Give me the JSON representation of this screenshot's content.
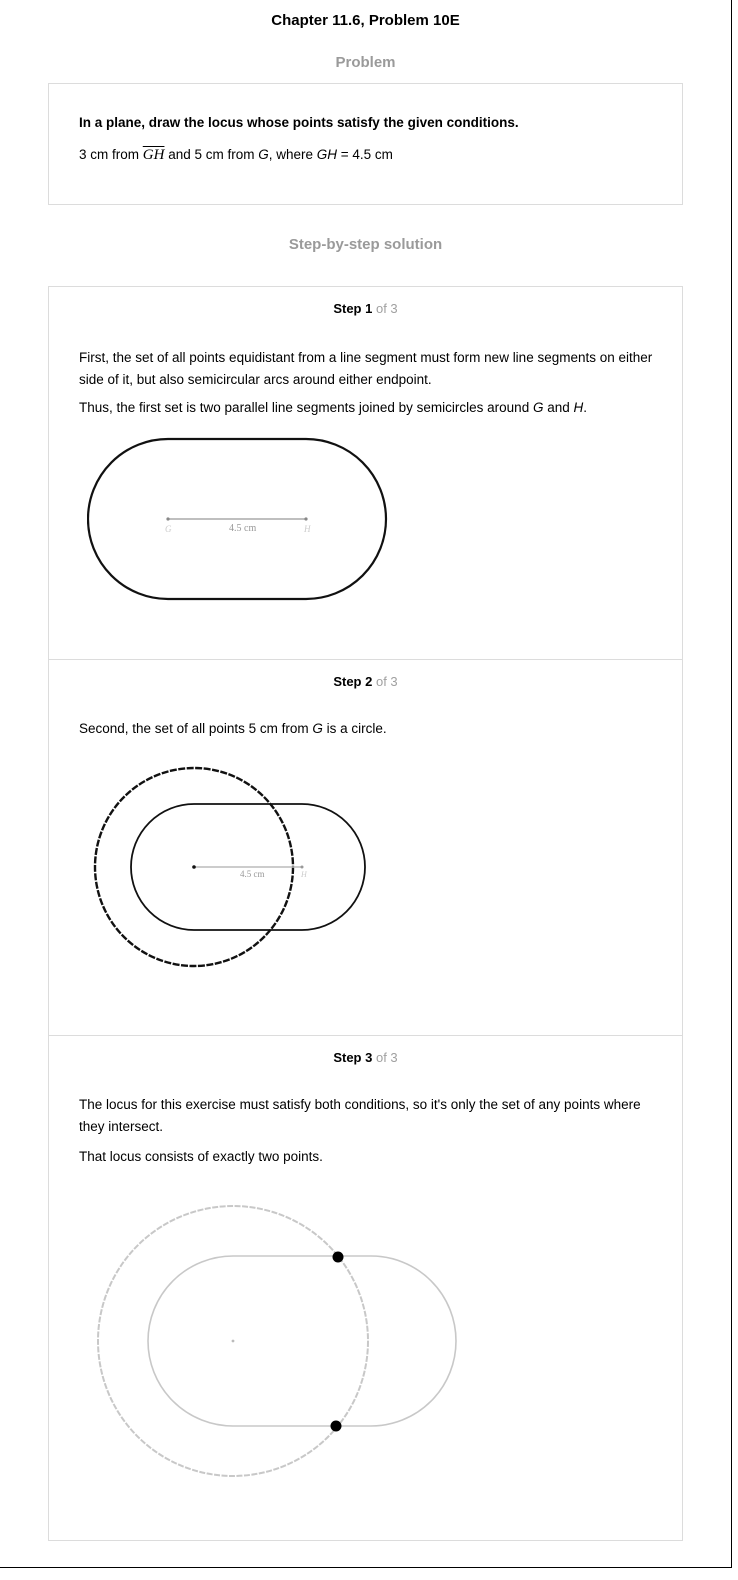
{
  "header": {
    "title": "Chapter 11.6, Problem 10E"
  },
  "problem": {
    "heading": "Problem",
    "statement": "In a plane, draw the locus whose points satisfy the given conditions.",
    "condition": {
      "pre": "3 cm from ",
      "segment": "GH",
      "mid1": " and 5 cm from ",
      "g": "G",
      "mid2": ", where ",
      "gh": "GH",
      "post": " = 4.5 cm"
    }
  },
  "solution": {
    "heading": "Step-by-step solution",
    "of_label": "of 3",
    "steps": [
      {
        "label": "Step 1",
        "paragraph1": "First, the set of all points equidistant from a line segment must form new line segments on either side of it, but also semicircular arcs around either endpoint.",
        "p2_pre": "Thus, the first set is two parallel line segments joined by semicircles around ",
        "p2_g": "G",
        "p2_and": " and ",
        "p2_h": "H",
        "p2_post": ".",
        "figure": {
          "segment_label": "4.5 cm",
          "point_g": "G",
          "point_h": "H"
        }
      },
      {
        "label": "Step 2",
        "p1_pre": "Second, the set of all points 5 cm from ",
        "p1_g": "G",
        "p1_post": " is a circle.",
        "figure": {
          "segment_label": "4.5 cm",
          "point_h": "H"
        }
      },
      {
        "label": "Step 3",
        "paragraph1": "The locus for this exercise must satisfy both conditions, so it's only the set of any points where they intersect.",
        "paragraph2": "That locus consists of exactly two points."
      }
    ]
  }
}
